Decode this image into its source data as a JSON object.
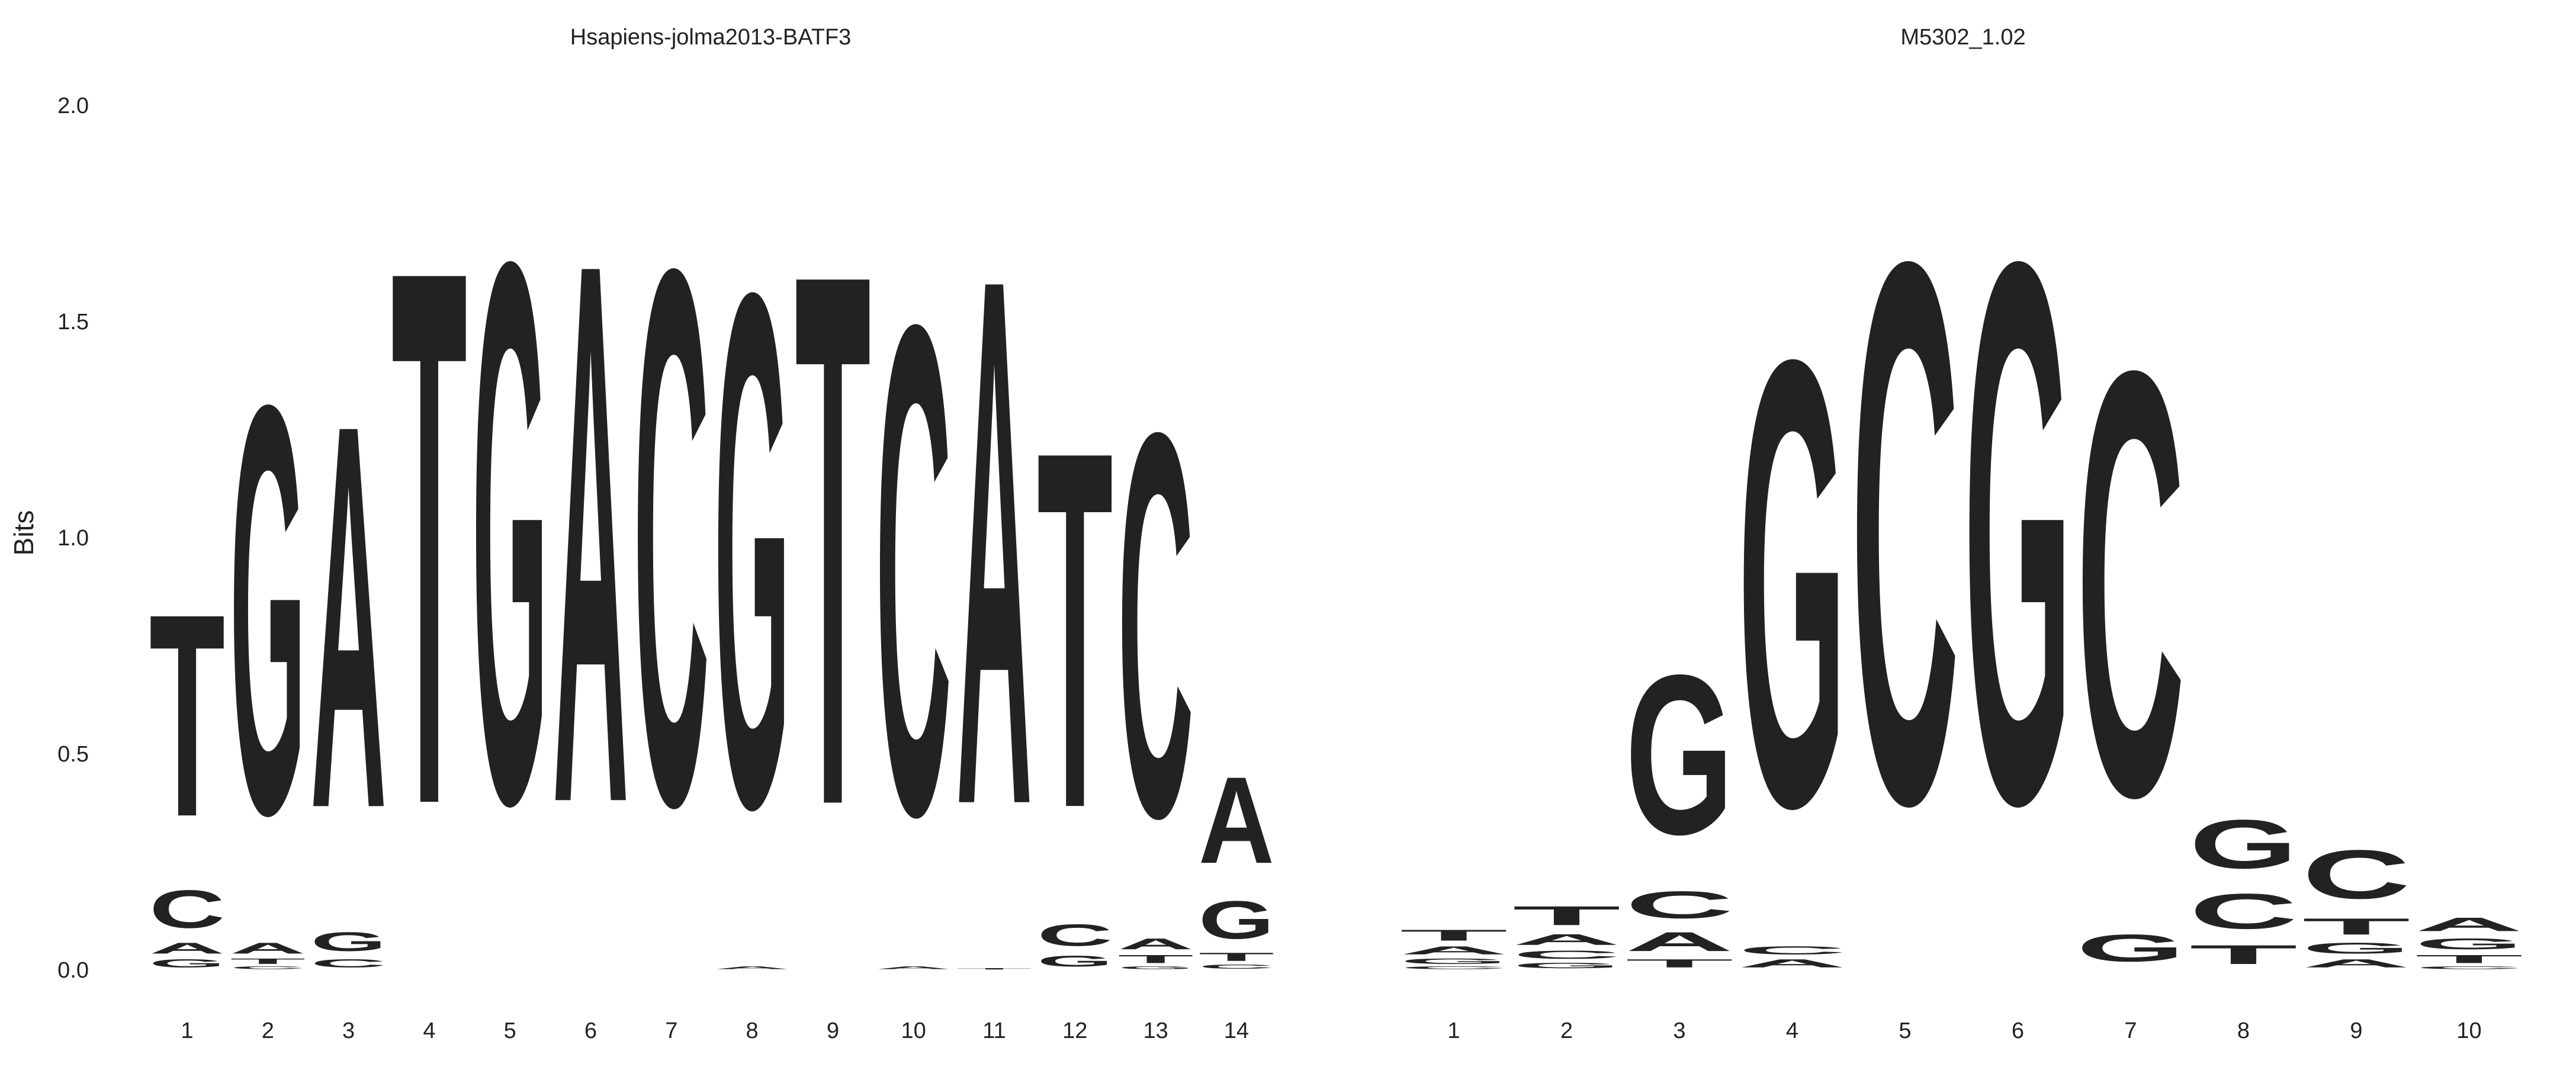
{
  "colors": {
    "A": "#109648",
    "C": "#255C99",
    "G": "#F7B32B",
    "T": "#D62839"
  },
  "ylabel": "Bits",
  "chart_data": [
    {
      "type": "sequence-logo",
      "title": "Hsapiens-jolma2013-BATF3",
      "ylabel": "Bits",
      "ylim": [
        0,
        2
      ],
      "yticks": [
        "0.0",
        "0.5",
        "1.0",
        "1.5",
        "2.0"
      ],
      "xticks": [
        "1",
        "2",
        "3",
        "4",
        "5",
        "6",
        "7",
        "8",
        "9",
        "10",
        "11",
        "12",
        "13",
        "14"
      ],
      "positions": [
        {
          "pos": "1",
          "letters": [
            {
              "base": "G",
              "bits": 0.03
            },
            {
              "base": "A",
              "bits": 0.04
            },
            {
              "base": "C",
              "bits": 0.14
            },
            {
              "base": "T",
              "bits": 0.75
            }
          ]
        },
        {
          "pos": "2",
          "letters": [
            {
              "base": "C",
              "bits": 0.01
            },
            {
              "base": "T",
              "bits": 0.02
            },
            {
              "base": "A",
              "bits": 0.04
            },
            {
              "base": "G",
              "bits": 1.51
            }
          ]
        },
        {
          "pos": "3",
          "letters": [
            {
              "base": "C",
              "bits": 0.03
            },
            {
              "base": "G",
              "bits": 0.07
            },
            {
              "base": "A",
              "bits": 1.42
            }
          ]
        },
        {
          "pos": "4",
          "letters": [
            {
              "base": "T",
              "bits": 1.98
            }
          ]
        },
        {
          "pos": "5",
          "letters": [
            {
              "base": "G",
              "bits": 2.0
            }
          ]
        },
        {
          "pos": "6",
          "letters": [
            {
              "base": "A",
              "bits": 2.0
            }
          ]
        },
        {
          "pos": "7",
          "letters": [
            {
              "base": "C",
              "bits": 1.98
            }
          ]
        },
        {
          "pos": "8",
          "letters": [
            {
              "base": "A",
              "bits": 0.01
            },
            {
              "base": "G",
              "bits": 1.9
            }
          ]
        },
        {
          "pos": "9",
          "letters": [
            {
              "base": "T",
              "bits": 1.97
            }
          ]
        },
        {
          "pos": "10",
          "letters": [
            {
              "base": "A",
              "bits": 0.01
            },
            {
              "base": "C",
              "bits": 1.81
            }
          ]
        },
        {
          "pos": "11",
          "letters": [
            {
              "base": "T",
              "bits": 0.005
            },
            {
              "base": "A",
              "bits": 1.95
            }
          ]
        },
        {
          "pos": "12",
          "letters": [
            {
              "base": "G",
              "bits": 0.04
            },
            {
              "base": "C",
              "bits": 0.08
            },
            {
              "base": "T",
              "bits": 1.32
            }
          ]
        },
        {
          "pos": "13",
          "letters": [
            {
              "base": "G",
              "bits": 0.01
            },
            {
              "base": "T",
              "bits": 0.03
            },
            {
              "base": "A",
              "bits": 0.04
            },
            {
              "base": "C",
              "bits": 1.42
            }
          ]
        },
        {
          "pos": "14",
          "letters": [
            {
              "base": "C",
              "bits": 0.015
            },
            {
              "base": "T",
              "bits": 0.03
            },
            {
              "base": "G",
              "bits": 0.14
            },
            {
              "base": "A",
              "bits": 0.32
            }
          ]
        }
      ]
    },
    {
      "type": "sequence-logo",
      "title": "M5302_1.02",
      "ylim": [
        0,
        2
      ],
      "xticks": [
        "1",
        "2",
        "3",
        "4",
        "5",
        "6",
        "7",
        "8",
        "9",
        "10"
      ],
      "positions": [
        {
          "pos": "1",
          "letters": [
            {
              "base": "C",
              "bits": 0.01
            },
            {
              "base": "G",
              "bits": 0.02
            },
            {
              "base": "A",
              "bits": 0.03
            },
            {
              "base": "T",
              "bits": 0.04
            }
          ]
        },
        {
          "pos": "2",
          "letters": [
            {
              "base": "G",
              "bits": 0.02
            },
            {
              "base": "C",
              "bits": 0.03
            },
            {
              "base": "A",
              "bits": 0.04
            },
            {
              "base": "T",
              "bits": 0.07
            }
          ]
        },
        {
          "pos": "3",
          "letters": [
            {
              "base": "T",
              "bits": 0.03
            },
            {
              "base": "A",
              "bits": 0.07
            },
            {
              "base": "C",
              "bits": 0.1
            },
            {
              "base": "G",
              "bits": 0.59
            }
          ]
        },
        {
          "pos": "4",
          "letters": [
            {
              "base": "A",
              "bits": 0.03
            },
            {
              "base": "C",
              "bits": 0.03
            },
            {
              "base": "G",
              "bits": 1.65
            }
          ]
        },
        {
          "pos": "5",
          "letters": [
            {
              "base": "C",
              "bits": 2.0
            }
          ]
        },
        {
          "pos": "6",
          "letters": [
            {
              "base": "G",
              "bits": 2.0
            }
          ]
        },
        {
          "pos": "7",
          "letters": [
            {
              "base": "G",
              "bits": 0.1
            },
            {
              "base": "C",
              "bits": 1.57
            }
          ]
        },
        {
          "pos": "8",
          "letters": [
            {
              "base": "T",
              "bits": 0.07
            },
            {
              "base": "C",
              "bits": 0.13
            },
            {
              "base": "G",
              "bits": 0.18
            }
          ]
        },
        {
          "pos": "9",
          "letters": [
            {
              "base": "A",
              "bits": 0.03
            },
            {
              "base": "G",
              "bits": 0.04
            },
            {
              "base": "T",
              "bits": 0.06
            },
            {
              "base": "C",
              "bits": 0.18
            }
          ]
        },
        {
          "pos": "10",
          "letters": [
            {
              "base": "C",
              "bits": 0.01
            },
            {
              "base": "T",
              "bits": 0.03
            },
            {
              "base": "G",
              "bits": 0.04
            },
            {
              "base": "A",
              "bits": 0.05
            }
          ]
        }
      ]
    }
  ]
}
